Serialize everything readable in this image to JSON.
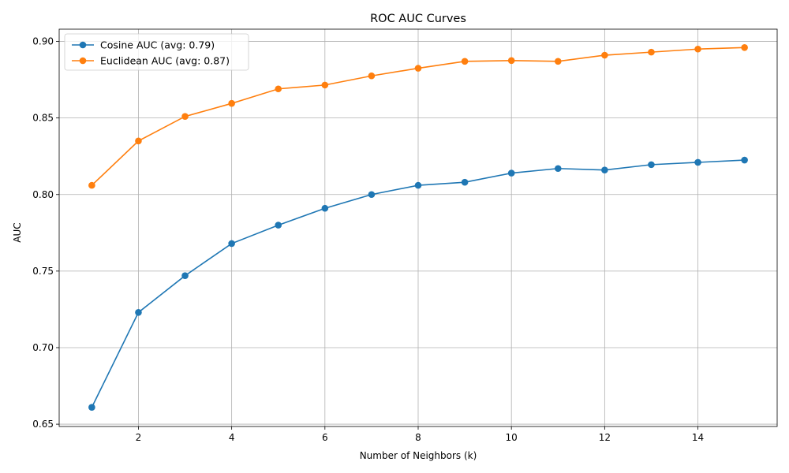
{
  "chart_data": {
    "type": "line",
    "title": "ROC AUC Curves",
    "xlabel": "Number of Neighbors (k)",
    "ylabel": "AUC",
    "x": [
      1,
      2,
      3,
      4,
      5,
      6,
      7,
      8,
      9,
      10,
      11,
      12,
      13,
      14,
      15
    ],
    "xlim": [
      0.3,
      15.7
    ],
    "ylim": [
      0.6485,
      0.908
    ],
    "xticks": [
      2,
      4,
      6,
      8,
      10,
      12,
      14
    ],
    "xtick_labels": [
      "2",
      "4",
      "6",
      "8",
      "10",
      "12",
      "14"
    ],
    "yticks": [
      0.65,
      0.7,
      0.75,
      0.8,
      0.85,
      0.9
    ],
    "ytick_labels": [
      "0.65",
      "0.70",
      "0.75",
      "0.80",
      "0.85",
      "0.90"
    ],
    "grid": true,
    "legend_position": "top-left",
    "series": [
      {
        "name": "Cosine AUC (avg: 0.79)",
        "color": "#1f77b4",
        "marker": "circle",
        "values": [
          0.661,
          0.723,
          0.747,
          0.768,
          0.78,
          0.791,
          0.8,
          0.806,
          0.808,
          0.814,
          0.817,
          0.816,
          0.8195,
          0.821,
          0.8225
        ]
      },
      {
        "name": "Euclidean AUC (avg: 0.87)",
        "color": "#ff7f0e",
        "marker": "circle",
        "values": [
          0.806,
          0.835,
          0.851,
          0.8595,
          0.869,
          0.8715,
          0.8775,
          0.8825,
          0.887,
          0.8875,
          0.887,
          0.891,
          0.893,
          0.895,
          0.896
        ]
      }
    ]
  }
}
